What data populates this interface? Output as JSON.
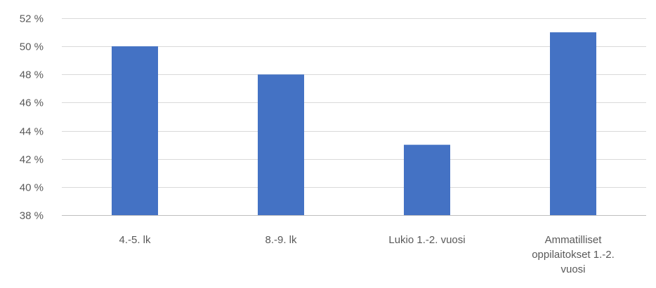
{
  "chart_data": {
    "type": "bar",
    "categories": [
      "4.-5. lk",
      "8.-9. lk",
      "Lukio 1.-2. vuosi",
      "Ammatilliset oppilaitokset 1.-2. vuosi"
    ],
    "category_lines": [
      [
        "4.-5. lk"
      ],
      [
        "8.-9. lk"
      ],
      [
        "Lukio 1.-2. vuosi"
      ],
      [
        "Ammatilliset",
        "oppilaitokset 1.-2.",
        "vuosi"
      ]
    ],
    "values": [
      50,
      48,
      43,
      51
    ],
    "ylim": [
      38,
      52
    ],
    "yticks": [
      38,
      40,
      42,
      44,
      46,
      48,
      50,
      52
    ],
    "ytick_labels": [
      "38 %",
      "40 %",
      "42 %",
      "44 %",
      "46 %",
      "48 %",
      "50 %",
      "52 %"
    ],
    "title": "",
    "xlabel": "",
    "ylabel": "",
    "grid": true,
    "legend": "none",
    "bar_color": "#4472c4",
    "grid_color": "#d9d9d9",
    "text_color": "#595959"
  }
}
